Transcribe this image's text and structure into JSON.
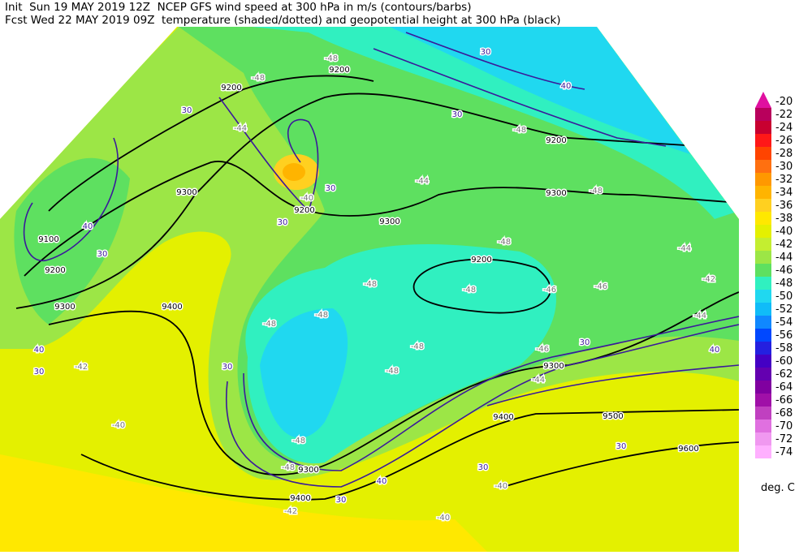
{
  "header": {
    "line1": "Init  Sun 19 MAY 2019 12Z  NCEP GFS wind speed at 300 hPa in m/s (contours/barbs)",
    "line2": "Fcst Wed 22 MAY 2019 09Z  temperature (shaded/dotted) and geopotential height at 300 hPa (black)"
  },
  "colorbar": {
    "levels": [
      -20,
      -22,
      -24,
      -26,
      -28,
      -30,
      -32,
      -34,
      -36,
      -38,
      -40,
      -42,
      -44,
      -46,
      -48,
      -50,
      -52,
      -54,
      -56,
      -58,
      -60,
      -62,
      -64,
      -66,
      -68,
      -70,
      -72,
      -74
    ],
    "colors": [
      "#e010a0",
      "#b8005c",
      "#c80030",
      "#ff1818",
      "#ff4400",
      "#ff7010",
      "#ff9800",
      "#ffb400",
      "#ffd020",
      "#ffe800",
      "#e4f000",
      "#c4ee30",
      "#9ce646",
      "#5ee060",
      "#30f0c0",
      "#20d8f0",
      "#10bcf8",
      "#1088ff",
      "#0048ff",
      "#2420e0",
      "#4400c4",
      "#6400b0",
      "#8000a0",
      "#a010a8",
      "#c040c0",
      "#e070e0",
      "#f098f0",
      "#ffb0ff"
    ],
    "unit": "deg. C"
  },
  "map": {
    "height_labels": [
      9100,
      9200,
      9300,
      9400,
      9300,
      9200,
      9200,
      9200,
      9300,
      9200,
      9300,
      9200,
      9300,
      9400,
      9500,
      9600,
      9300,
      9400
    ],
    "wind_labels": [
      30,
      40,
      30,
      40,
      30,
      30,
      30,
      30,
      40,
      30,
      30,
      40,
      30,
      30,
      30,
      40,
      30
    ],
    "temperature_labels": [
      -48,
      -48,
      -44,
      -40,
      -44,
      -48,
      -48,
      -48,
      -46,
      -46,
      -44,
      -42,
      -44,
      -48,
      -48,
      -48,
      -48,
      -46,
      -44,
      -48,
      -48,
      -42,
      -40,
      -40,
      -40,
      -42,
      -48,
      -48
    ]
  }
}
